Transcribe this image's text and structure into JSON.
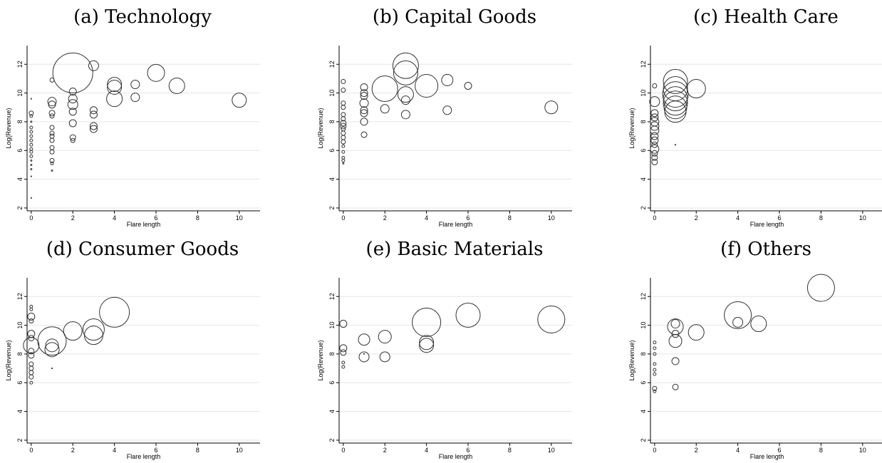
{
  "chart_data": [
    {
      "type": "scatter",
      "title": "(a) Technology",
      "xlabel": "Flare length",
      "ylabel": "Log(Revenue)",
      "xlim": [
        -0.2,
        11
      ],
      "ylim": [
        1.8,
        13.3
      ],
      "xticks": [
        0,
        2,
        4,
        6,
        8,
        10
      ],
      "yticks": [
        2,
        4,
        6,
        8,
        10,
        12
      ],
      "grid": true,
      "points": [
        {
          "x": 0,
          "y": 9.6,
          "s": 0.5
        },
        {
          "x": 0,
          "y": 8.6,
          "s": 3
        },
        {
          "x": 0,
          "y": 8.4,
          "s": 2
        },
        {
          "x": 0,
          "y": 8.0,
          "s": 1
        },
        {
          "x": 0,
          "y": 7.6,
          "s": 2
        },
        {
          "x": 0,
          "y": 7.3,
          "s": 2
        },
        {
          "x": 0,
          "y": 7.0,
          "s": 2
        },
        {
          "x": 0,
          "y": 6.7,
          "s": 2
        },
        {
          "x": 0,
          "y": 6.4,
          "s": 2
        },
        {
          "x": 0,
          "y": 6.1,
          "s": 2
        },
        {
          "x": 0,
          "y": 5.9,
          "s": 2
        },
        {
          "x": 0,
          "y": 5.6,
          "s": 2
        },
        {
          "x": 0,
          "y": 5.3,
          "s": 1
        },
        {
          "x": 0,
          "y": 5.0,
          "s": 1
        },
        {
          "x": 0,
          "y": 4.7,
          "s": 1
        },
        {
          "x": 0,
          "y": 4.2,
          "s": 0.5
        },
        {
          "x": 0,
          "y": 2.7,
          "s": 0.3
        },
        {
          "x": 1,
          "y": 10.9,
          "s": 3
        },
        {
          "x": 1,
          "y": 9.4,
          "s": 6
        },
        {
          "x": 1,
          "y": 9.2,
          "s": 5
        },
        {
          "x": 1,
          "y": 8.6,
          "s": 4
        },
        {
          "x": 1,
          "y": 8.4,
          "s": 3
        },
        {
          "x": 1,
          "y": 7.6,
          "s": 3
        },
        {
          "x": 1,
          "y": 7.2,
          "s": 3
        },
        {
          "x": 1,
          "y": 7.0,
          "s": 3
        },
        {
          "x": 1,
          "y": 6.7,
          "s": 3
        },
        {
          "x": 1,
          "y": 6.2,
          "s": 3
        },
        {
          "x": 1,
          "y": 5.9,
          "s": 3
        },
        {
          "x": 1,
          "y": 5.3,
          "s": 3
        },
        {
          "x": 1,
          "y": 5.1,
          "s": 2
        },
        {
          "x": 1,
          "y": 4.6,
          "s": 1
        },
        {
          "x": 2,
          "y": 11.4,
          "s": 28
        },
        {
          "x": 2,
          "y": 10.1,
          "s": 5
        },
        {
          "x": 2,
          "y": 9.6,
          "s": 6
        },
        {
          "x": 2,
          "y": 9.2,
          "s": 7
        },
        {
          "x": 2,
          "y": 8.7,
          "s": 5
        },
        {
          "x": 2,
          "y": 7.9,
          "s": 5
        },
        {
          "x": 2,
          "y": 6.9,
          "s": 4
        },
        {
          "x": 2,
          "y": 6.7,
          "s": 3
        },
        {
          "x": 3,
          "y": 11.9,
          "s": 7
        },
        {
          "x": 3,
          "y": 8.8,
          "s": 5
        },
        {
          "x": 3,
          "y": 8.5,
          "s": 5
        },
        {
          "x": 3,
          "y": 7.7,
          "s": 5
        },
        {
          "x": 3,
          "y": 7.5,
          "s": 5
        },
        {
          "x": 4,
          "y": 10.6,
          "s": 10
        },
        {
          "x": 4,
          "y": 10.4,
          "s": 10
        },
        {
          "x": 4,
          "y": 9.6,
          "s": 11
        },
        {
          "x": 5,
          "y": 10.6,
          "s": 6
        },
        {
          "x": 5,
          "y": 9.7,
          "s": 6
        },
        {
          "x": 6,
          "y": 11.4,
          "s": 12
        },
        {
          "x": 7,
          "y": 10.5,
          "s": 11
        },
        {
          "x": 10,
          "y": 9.5,
          "s": 10
        }
      ]
    },
    {
      "type": "scatter",
      "title": "(b) Capital Goods",
      "xlabel": "Flare length",
      "ylabel": "Log(Revenue)",
      "xlim": [
        -0.2,
        11
      ],
      "ylim": [
        1.8,
        13.3
      ],
      "xticks": [
        0,
        2,
        4,
        6,
        8,
        10
      ],
      "yticks": [
        2,
        4,
        6,
        8,
        10,
        12
      ],
      "grid": true,
      "points": [
        {
          "x": 0,
          "y": 10.8,
          "s": 3
        },
        {
          "x": 0,
          "y": 10.2,
          "s": 3
        },
        {
          "x": 0,
          "y": 9.3,
          "s": 3
        },
        {
          "x": 0,
          "y": 9.0,
          "s": 3
        },
        {
          "x": 0,
          "y": 8.5,
          "s": 3
        },
        {
          "x": 0,
          "y": 8.2,
          "s": 3
        },
        {
          "x": 0,
          "y": 7.9,
          "s": 4
        },
        {
          "x": 0,
          "y": 7.7,
          "s": 4
        },
        {
          "x": 0,
          "y": 7.5,
          "s": 3
        },
        {
          "x": 0,
          "y": 7.2,
          "s": 3
        },
        {
          "x": 0,
          "y": 6.9,
          "s": 3
        },
        {
          "x": 0,
          "y": 6.6,
          "s": 3
        },
        {
          "x": 0,
          "y": 6.3,
          "s": 2
        },
        {
          "x": 0,
          "y": 5.9,
          "s": 2
        },
        {
          "x": 0,
          "y": 5.5,
          "s": 2
        },
        {
          "x": 0,
          "y": 5.3,
          "s": 2
        },
        {
          "x": 0,
          "y": 5.1,
          "s": 1
        },
        {
          "x": 1,
          "y": 10.4,
          "s": 5
        },
        {
          "x": 1,
          "y": 10.0,
          "s": 5
        },
        {
          "x": 1,
          "y": 9.8,
          "s": 5
        },
        {
          "x": 1,
          "y": 9.3,
          "s": 6
        },
        {
          "x": 1,
          "y": 8.8,
          "s": 5
        },
        {
          "x": 1,
          "y": 8.6,
          "s": 5
        },
        {
          "x": 1,
          "y": 8.0,
          "s": 5
        },
        {
          "x": 1,
          "y": 7.1,
          "s": 4
        },
        {
          "x": 2,
          "y": 10.3,
          "s": 18
        },
        {
          "x": 2,
          "y": 8.9,
          "s": 6
        },
        {
          "x": 3,
          "y": 11.9,
          "s": 18
        },
        {
          "x": 3,
          "y": 11.4,
          "s": 17
        },
        {
          "x": 3,
          "y": 9.9,
          "s": 11
        },
        {
          "x": 3,
          "y": 9.5,
          "s": 6
        },
        {
          "x": 3,
          "y": 8.5,
          "s": 6
        },
        {
          "x": 4,
          "y": 10.5,
          "s": 16
        },
        {
          "x": 5,
          "y": 10.9,
          "s": 8
        },
        {
          "x": 5,
          "y": 8.8,
          "s": 6
        },
        {
          "x": 6,
          "y": 10.5,
          "s": 5
        },
        {
          "x": 10,
          "y": 9.0,
          "s": 9
        }
      ]
    },
    {
      "type": "scatter",
      "title": "(c) Health Care",
      "xlabel": "Flare length",
      "ylabel": "Log(Revenue)",
      "xlim": [
        -0.2,
        11
      ],
      "ylim": [
        1.8,
        13.3
      ],
      "xticks": [
        0,
        2,
        4,
        6,
        8,
        10
      ],
      "yticks": [
        2,
        4,
        6,
        8,
        10,
        12
      ],
      "grid": true,
      "points": [
        {
          "x": 0,
          "y": 10.5,
          "s": 3
        },
        {
          "x": 0,
          "y": 9.4,
          "s": 7
        },
        {
          "x": 0,
          "y": 8.6,
          "s": 5
        },
        {
          "x": 0,
          "y": 8.3,
          "s": 5
        },
        {
          "x": 0,
          "y": 8.0,
          "s": 6
        },
        {
          "x": 0,
          "y": 7.7,
          "s": 6
        },
        {
          "x": 0,
          "y": 7.4,
          "s": 6
        },
        {
          "x": 0,
          "y": 7.0,
          "s": 5
        },
        {
          "x": 0,
          "y": 6.7,
          "s": 5
        },
        {
          "x": 0,
          "y": 6.4,
          "s": 4
        },
        {
          "x": 0,
          "y": 6.1,
          "s": 6
        },
        {
          "x": 0,
          "y": 5.8,
          "s": 4
        },
        {
          "x": 0,
          "y": 5.5,
          "s": 4
        },
        {
          "x": 0,
          "y": 5.2,
          "s": 4
        },
        {
          "x": 1,
          "y": 10.8,
          "s": 17
        },
        {
          "x": 1,
          "y": 10.3,
          "s": 17
        },
        {
          "x": 1,
          "y": 9.9,
          "s": 18
        },
        {
          "x": 1,
          "y": 9.6,
          "s": 17
        },
        {
          "x": 1,
          "y": 9.3,
          "s": 17
        },
        {
          "x": 1,
          "y": 9.0,
          "s": 16
        },
        {
          "x": 1,
          "y": 8.7,
          "s": 15
        },
        {
          "x": 1,
          "y": 6.4,
          "s": 0.5
        },
        {
          "x": 2,
          "y": 10.3,
          "s": 13
        }
      ]
    },
    {
      "type": "scatter",
      "title": "(d) Consumer Goods",
      "xlabel": "Flare length",
      "ylabel": "Log(Revenue)",
      "xlim": [
        -0.2,
        11
      ],
      "ylim": [
        1.8,
        13.3
      ],
      "xticks": [
        0,
        2,
        4,
        6,
        8,
        10
      ],
      "yticks": [
        2,
        4,
        6,
        8,
        10,
        12
      ],
      "grid": true,
      "points": [
        {
          "x": 0,
          "y": 11.3,
          "s": 2
        },
        {
          "x": 0,
          "y": 11.1,
          "s": 2
        },
        {
          "x": 0,
          "y": 10.6,
          "s": 5
        },
        {
          "x": 0,
          "y": 10.3,
          "s": 3
        },
        {
          "x": 0,
          "y": 9.4,
          "s": 5
        },
        {
          "x": 0,
          "y": 9.1,
          "s": 4
        },
        {
          "x": 0,
          "y": 8.6,
          "s": 11
        },
        {
          "x": 0,
          "y": 8.2,
          "s": 4
        },
        {
          "x": 0,
          "y": 7.9,
          "s": 4
        },
        {
          "x": 0,
          "y": 7.3,
          "s": 3
        },
        {
          "x": 0,
          "y": 7.0,
          "s": 3
        },
        {
          "x": 0,
          "y": 6.7,
          "s": 3
        },
        {
          "x": 0,
          "y": 6.4,
          "s": 3
        },
        {
          "x": 0,
          "y": 6.0,
          "s": 2
        },
        {
          "x": 1,
          "y": 8.9,
          "s": 20
        },
        {
          "x": 1,
          "y": 8.6,
          "s": 9
        },
        {
          "x": 1,
          "y": 8.3,
          "s": 10
        },
        {
          "x": 1,
          "y": 7.0,
          "s": 0.5
        },
        {
          "x": 2,
          "y": 9.6,
          "s": 13
        },
        {
          "x": 3,
          "y": 9.7,
          "s": 15
        },
        {
          "x": 3,
          "y": 9.3,
          "s": 13
        },
        {
          "x": 4,
          "y": 10.9,
          "s": 21
        }
      ]
    },
    {
      "type": "scatter",
      "title": "(e) Basic Materials",
      "xlabel": "Flare length",
      "ylabel": "Log(Revenue)",
      "xlim": [
        -0.2,
        11
      ],
      "ylim": [
        1.8,
        13.3
      ],
      "xticks": [
        0,
        2,
        4,
        6,
        8,
        10
      ],
      "yticks": [
        2,
        4,
        6,
        8,
        10,
        12
      ],
      "grid": true,
      "points": [
        {
          "x": 0,
          "y": 10.1,
          "s": 5
        },
        {
          "x": 0,
          "y": 8.4,
          "s": 5
        },
        {
          "x": 0,
          "y": 8.1,
          "s": 4
        },
        {
          "x": 0,
          "y": 7.4,
          "s": 2
        },
        {
          "x": 0,
          "y": 7.1,
          "s": 2
        },
        {
          "x": 1,
          "y": 9.0,
          "s": 8
        },
        {
          "x": 1,
          "y": 8.0,
          "s": 0.5
        },
        {
          "x": 1,
          "y": 7.8,
          "s": 7
        },
        {
          "x": 2,
          "y": 9.2,
          "s": 9
        },
        {
          "x": 2,
          "y": 7.8,
          "s": 7
        },
        {
          "x": 4,
          "y": 10.2,
          "s": 20
        },
        {
          "x": 4,
          "y": 8.8,
          "s": 10
        },
        {
          "x": 4,
          "y": 8.6,
          "s": 10
        },
        {
          "x": 6,
          "y": 10.7,
          "s": 17
        },
        {
          "x": 10,
          "y": 10.4,
          "s": 19
        }
      ]
    },
    {
      "type": "scatter",
      "title": "(f) Others",
      "xlabel": "Flare length",
      "ylabel": "Log(Revenue)",
      "xlim": [
        -0.2,
        11
      ],
      "ylim": [
        1.8,
        13.3
      ],
      "xticks": [
        0,
        2,
        4,
        6,
        8,
        10
      ],
      "yticks": [
        2,
        4,
        6,
        8,
        10,
        12
      ],
      "grid": true,
      "points": [
        {
          "x": 0,
          "y": 8.8,
          "s": 2
        },
        {
          "x": 0,
          "y": 8.4,
          "s": 2
        },
        {
          "x": 0,
          "y": 8.0,
          "s": 2
        },
        {
          "x": 0,
          "y": 7.3,
          "s": 2
        },
        {
          "x": 0,
          "y": 6.9,
          "s": 2
        },
        {
          "x": 0,
          "y": 6.6,
          "s": 2
        },
        {
          "x": 0,
          "y": 5.6,
          "s": 3
        },
        {
          "x": 0,
          "y": 5.4,
          "s": 2
        },
        {
          "x": 1,
          "y": 10.1,
          "s": 6
        },
        {
          "x": 1,
          "y": 9.9,
          "s": 11
        },
        {
          "x": 1,
          "y": 9.4,
          "s": 5
        },
        {
          "x": 1,
          "y": 8.9,
          "s": 9
        },
        {
          "x": 1,
          "y": 7.5,
          "s": 5
        },
        {
          "x": 1,
          "y": 5.7,
          "s": 4
        },
        {
          "x": 2,
          "y": 9.5,
          "s": 11
        },
        {
          "x": 4,
          "y": 10.7,
          "s": 19
        },
        {
          "x": 4,
          "y": 10.2,
          "s": 7
        },
        {
          "x": 5,
          "y": 10.1,
          "s": 11
        },
        {
          "x": 8,
          "y": 12.6,
          "s": 19
        }
      ]
    }
  ]
}
